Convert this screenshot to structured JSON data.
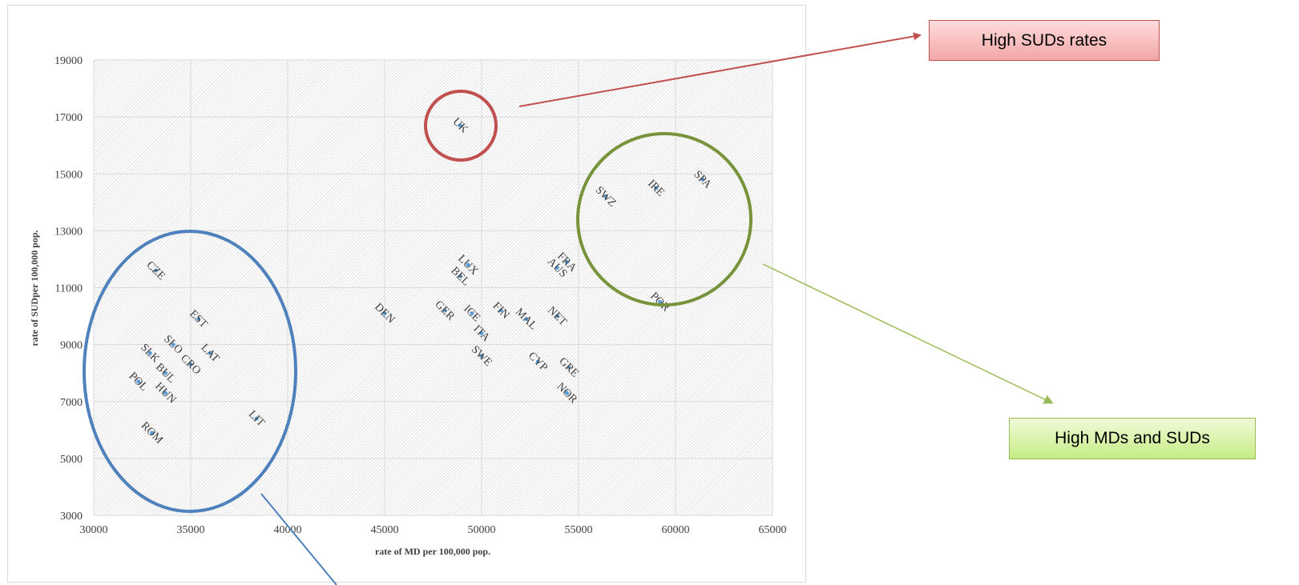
{
  "chart_data": {
    "type": "scatter",
    "xlabel": "rate of MD per 100,000 pop.",
    "ylabel": "rate of SUDper 100,000 pop.",
    "xlim": [
      30000,
      65000
    ],
    "ylim": [
      3000,
      19000
    ],
    "xticks": [
      "30000",
      "35000",
      "40000",
      "45000",
      "50000",
      "55000",
      "60000",
      "65000"
    ],
    "yticks": [
      "3000",
      "5000",
      "7000",
      "9000",
      "11000",
      "13000",
      "15000",
      "17000",
      "19000"
    ],
    "grid": true,
    "points": [
      {
        "label": "UK",
        "x": 48900,
        "y": 16700
      },
      {
        "label": "SPA",
        "x": 61400,
        "y": 14800
      },
      {
        "label": "IRE",
        "x": 59000,
        "y": 14500
      },
      {
        "label": "SWZ",
        "x": 56400,
        "y": 14200
      },
      {
        "label": "POR",
        "x": 59200,
        "y": 10500
      },
      {
        "label": "FRA",
        "x": 54400,
        "y": 11900
      },
      {
        "label": "AUS",
        "x": 53900,
        "y": 11700
      },
      {
        "label": "LUX",
        "x": 49300,
        "y": 11800
      },
      {
        "label": "BEL",
        "x": 48900,
        "y": 11400
      },
      {
        "label": "FIN",
        "x": 51000,
        "y": 10200
      },
      {
        "label": "MAL",
        "x": 52300,
        "y": 9900
      },
      {
        "label": "NET",
        "x": 53900,
        "y": 10000
      },
      {
        "label": "DEN",
        "x": 45000,
        "y": 10100
      },
      {
        "label": "GER",
        "x": 48100,
        "y": 10200
      },
      {
        "label": "ICE",
        "x": 49500,
        "y": 10100
      },
      {
        "label": "ITA",
        "x": 50000,
        "y": 9400
      },
      {
        "label": "SWE",
        "x": 50000,
        "y": 8600
      },
      {
        "label": "CYP",
        "x": 52900,
        "y": 8400
      },
      {
        "label": "GRE",
        "x": 54500,
        "y": 8200
      },
      {
        "label": "NOR",
        "x": 54400,
        "y": 7300
      },
      {
        "label": "CZE",
        "x": 33200,
        "y": 11600
      },
      {
        "label": "EST",
        "x": 35400,
        "y": 9900
      },
      {
        "label": "SLO",
        "x": 34100,
        "y": 9000
      },
      {
        "label": "LAT",
        "x": 36000,
        "y": 8700
      },
      {
        "label": "SLK",
        "x": 32900,
        "y": 8700
      },
      {
        "label": "CRO",
        "x": 35000,
        "y": 8300
      },
      {
        "label": "BUL",
        "x": 33700,
        "y": 8000
      },
      {
        "label": "POL",
        "x": 32300,
        "y": 7700
      },
      {
        "label": "HUN",
        "x": 33700,
        "y": 7300
      },
      {
        "label": "LIT",
        "x": 38400,
        "y": 6400
      },
      {
        "label": "ROM",
        "x": 33000,
        "y": 5900
      }
    ]
  },
  "callouts": {
    "red": "High SUDs rates",
    "green": "High MDs and SUDs"
  },
  "colors": {
    "red": "#c0504d",
    "green": "#77933c",
    "blue": "#4f81bd",
    "marker": "#5b9bd5"
  }
}
